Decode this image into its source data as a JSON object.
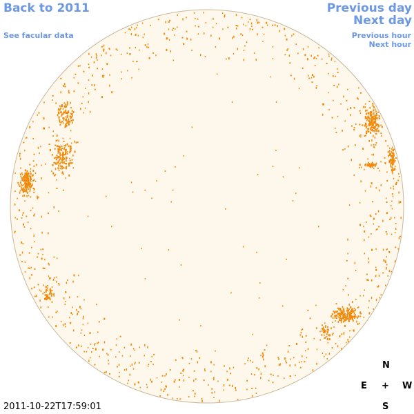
{
  "nav": {
    "back_to_year": "Back to 2011",
    "see_facular": "See facular data",
    "previous_day": "Previous day",
    "next_day": "Next day",
    "previous_hour": "Previous hour",
    "next_hour": "Next hour"
  },
  "compass": {
    "north": "N",
    "east": "E",
    "center": "+",
    "west": "W",
    "south": "S"
  },
  "timestamp": "2011-10-22T17:59:01",
  "colors": {
    "link": "#6d98e3",
    "disk_fill": "#fef8ec",
    "disk_outline": "#c8b89a",
    "facula": "#f08a0c"
  }
}
